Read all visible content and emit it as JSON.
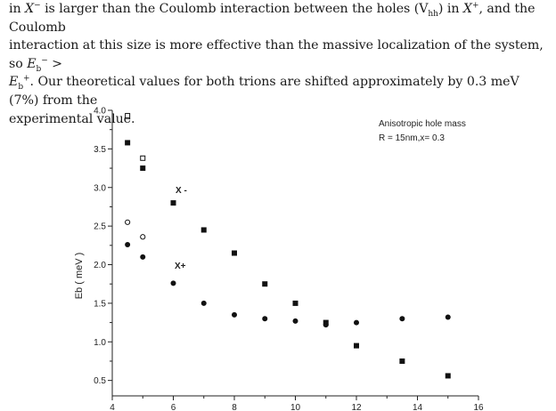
{
  "paragraph": {
    "l1_a": "in ",
    "l1_X1": "X",
    "l1_sup1": "−",
    "l1_b": " is larger than the Coulomb interaction between the holes (V",
    "l1_sub": "hh",
    "l1_c": ") in ",
    "l1_X2": "X",
    "l1_sup2": "+",
    "l1_d": ", and the Coulomb",
    "l2": "interaction at this size is more effective than the massive localization of the system, so ",
    "l2_E": "E",
    "l2_sub": "b",
    "l2_sup": "−",
    "l2_gt": " >",
    "l3_E": "E",
    "l3_sub": "b",
    "l3_sup": "+",
    "l3_rest": ". Our theoretical values for both trions are shifted approximately by 0.3 meV (7%) from the",
    "l4": "experimental value."
  },
  "chart_data": {
    "type": "scatter",
    "ylabel": "Eb ( meV )",
    "xlabel": "",
    "xlim": [
      4,
      16
    ],
    "ylim": [
      0.3,
      4.0
    ],
    "xticks": [
      "4",
      "6",
      "8",
      "10",
      "12",
      "14",
      "16"
    ],
    "yticks": [
      "0.5",
      "1.0",
      "1.5",
      "2.0",
      "2.5",
      "3.0",
      "3.5",
      "4.0"
    ],
    "annotation": {
      "line1": "Anisotropic hole mass",
      "line2": "R = 15nm,x= 0.3"
    },
    "series_labels": {
      "x_minus": "X -",
      "x_plus": "X+"
    },
    "series": [
      {
        "marker": "filled-square",
        "x": [
          4.5,
          5,
          6,
          7,
          8,
          9,
          10,
          11,
          12,
          13.5,
          15
        ],
        "y": [
          3.58,
          3.25,
          2.8,
          2.45,
          2.15,
          1.75,
          1.5,
          1.25,
          0.95,
          0.75,
          0.56
        ]
      },
      {
        "marker": "filled-circle",
        "x": [
          4.5,
          5,
          6,
          7,
          8,
          9,
          10,
          11,
          12,
          13.5,
          15
        ],
        "y": [
          2.26,
          2.1,
          1.76,
          1.5,
          1.35,
          1.3,
          1.27,
          1.22,
          1.25,
          1.3,
          1.32
        ]
      },
      {
        "marker": "open-square",
        "x": [
          4.5,
          5
        ],
        "y": [
          3.93,
          3.38
        ]
      },
      {
        "marker": "open-circle",
        "x": [
          4.5,
          5
        ],
        "y": [
          2.55,
          2.36
        ]
      }
    ]
  }
}
